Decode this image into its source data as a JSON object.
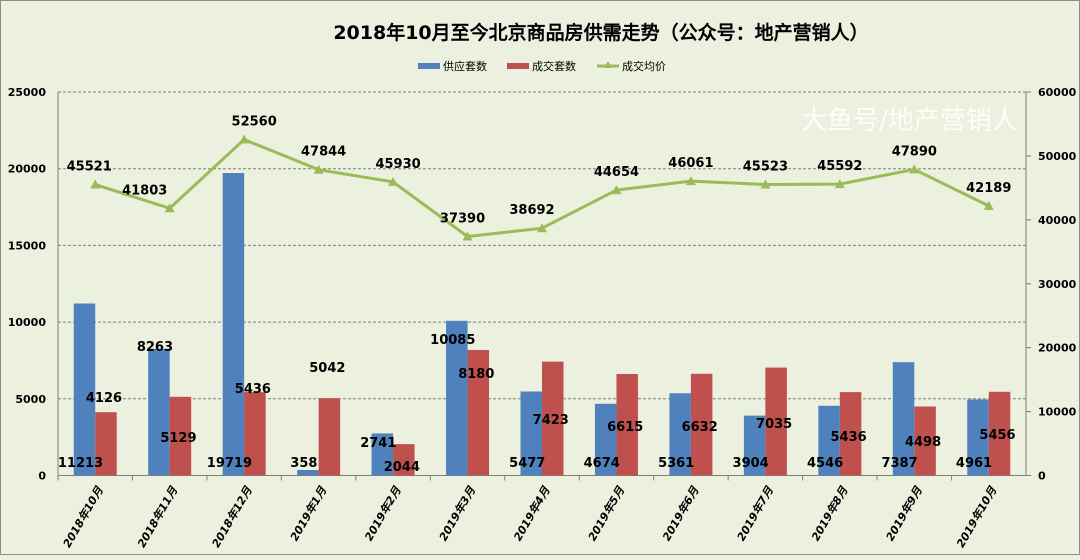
{
  "chart_data": {
    "type": "bar+line",
    "title": "2018年10月至今北京商品房供需走势（公众号：地产营销人）",
    "categories": [
      "2018年10月",
      "2018年11月",
      "2018年12月",
      "2019年1月",
      "2019年2月",
      "2019年3月",
      "2019年4月",
      "2019年5月",
      "2019年6月",
      "2019年7月",
      "2019年8月",
      "2019年9月",
      "2019年10月"
    ],
    "series": [
      {
        "name": "供应套数",
        "type": "bar",
        "axis": "left",
        "color": "#4f81bd",
        "values": [
          11213,
          8263,
          19719,
          358,
          2741,
          10085,
          5477,
          4674,
          5361,
          3904,
          4546,
          7387,
          4961
        ]
      },
      {
        "name": "成交套数",
        "type": "bar",
        "axis": "left",
        "color": "#c0504d",
        "values": [
          4126,
          5129,
          5436,
          5042,
          2044,
          8180,
          7423,
          6615,
          6632,
          7035,
          5436,
          4498,
          5456
        ]
      },
      {
        "name": "成交均价",
        "type": "line",
        "axis": "right",
        "color": "#9bbb59",
        "marker": "triangle",
        "values": [
          45521,
          41803,
          52560,
          47844,
          45930,
          37390,
          38692,
          44654,
          46061,
          45523,
          45592,
          47890,
          42189
        ]
      }
    ],
    "left_axis": {
      "ylim": [
        0,
        25000
      ],
      "ticks": [
        0,
        5000,
        10000,
        15000,
        20000,
        25000
      ]
    },
    "right_axis": {
      "ylim": [
        0,
        60000
      ],
      "ticks": [
        0,
        10000,
        20000,
        30000,
        40000,
        50000,
        60000
      ]
    },
    "grid": true,
    "legend": "top"
  },
  "watermark": "大鱼号/地产营销人"
}
